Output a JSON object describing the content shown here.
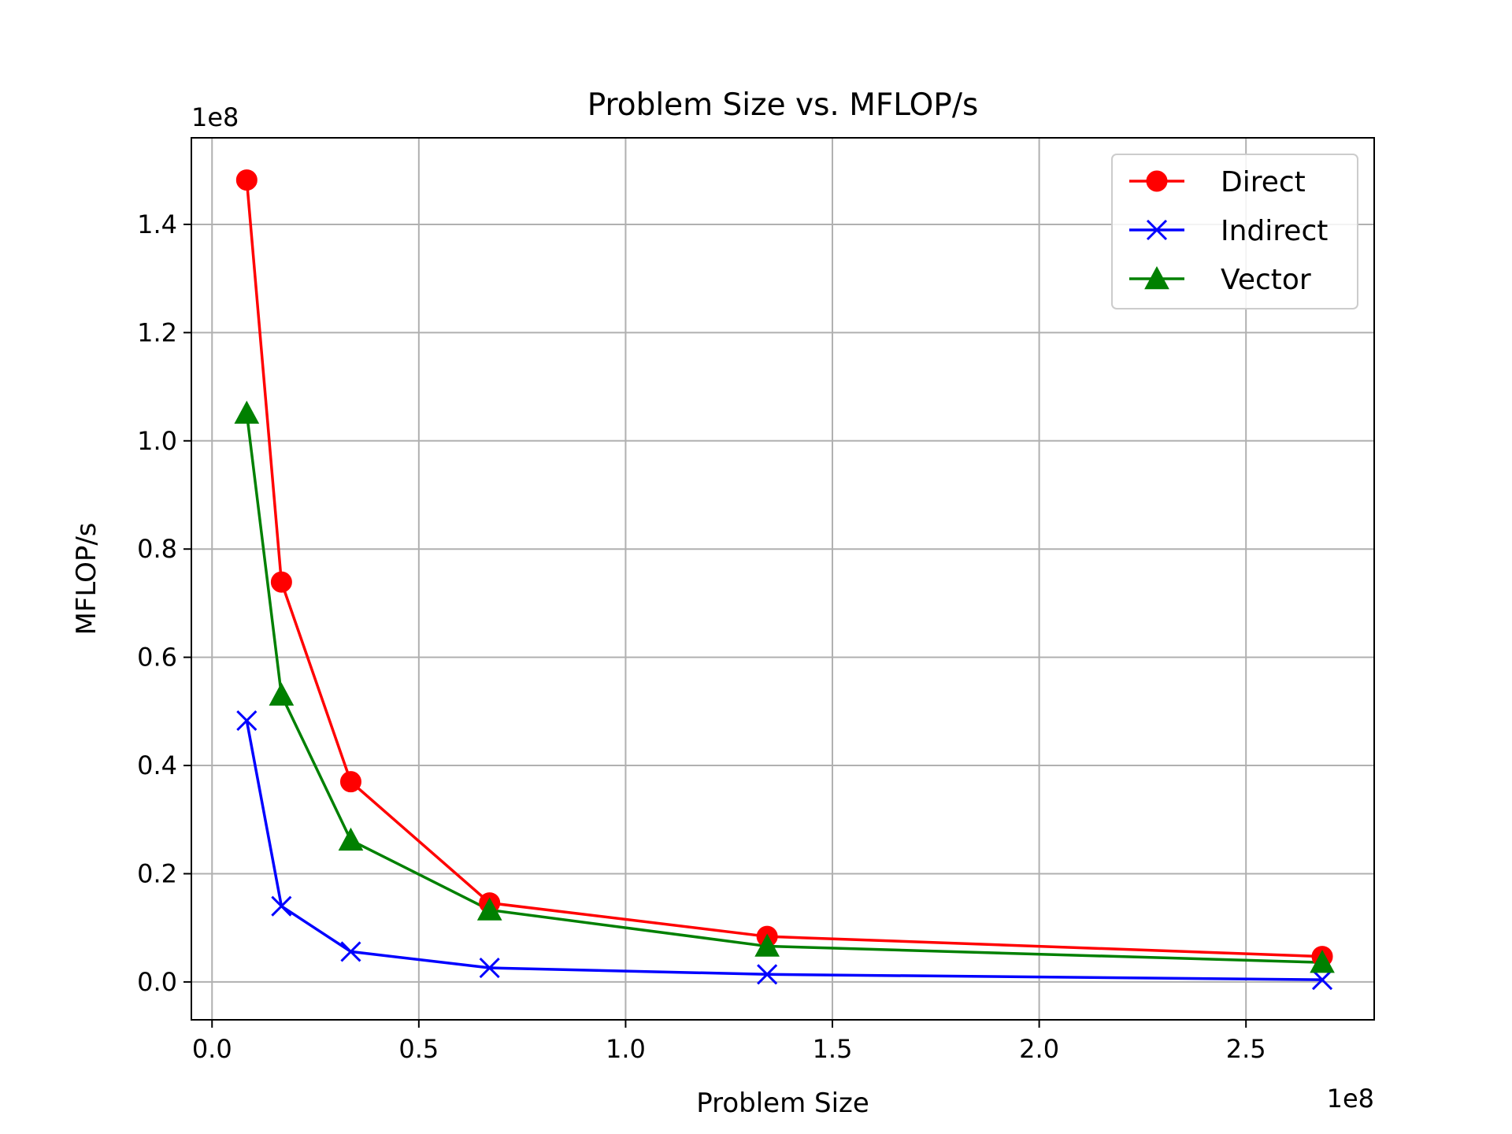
{
  "chart_data": {
    "type": "line",
    "title": "Problem Size vs. MFLOP/s",
    "xlabel": "Problem Size",
    "ylabel": "MFLOP/s",
    "x_offset_label": "1e8",
    "y_offset_label": "1e8",
    "xlim": [
      -0.05,
      2.81
    ],
    "ylim": [
      -0.07,
      1.56
    ],
    "x_ticks": [
      0.0,
      0.5,
      1.0,
      1.5,
      2.0,
      2.5
    ],
    "x_tick_labels": [
      "0.0",
      "0.5",
      "1.0",
      "1.5",
      "2.0",
      "2.5"
    ],
    "y_ticks": [
      0.0,
      0.2,
      0.4,
      0.6,
      0.8,
      1.0,
      1.2,
      1.4
    ],
    "y_tick_labels": [
      "0.0",
      "0.2",
      "0.4",
      "0.6",
      "0.8",
      "1.0",
      "1.2",
      "1.4"
    ],
    "grid": true,
    "legend_position": "top-right",
    "x": [
      0.0839,
      0.1678,
      0.3355,
      0.6711,
      1.3422,
      2.6844
    ],
    "series": [
      {
        "name": "Direct",
        "color": "#ff0000",
        "marker": "circle",
        "values": [
          1.482,
          0.739,
          0.37,
          0.146,
          0.084,
          0.047
        ]
      },
      {
        "name": "Indirect",
        "color": "#0000ff",
        "marker": "x",
        "values": [
          0.483,
          0.14,
          0.056,
          0.026,
          0.014,
          0.004
        ]
      },
      {
        "name": "Vector",
        "color": "#008000",
        "marker": "triangle",
        "values": [
          1.051,
          0.53,
          0.262,
          0.133,
          0.066,
          0.036
        ]
      }
    ]
  }
}
